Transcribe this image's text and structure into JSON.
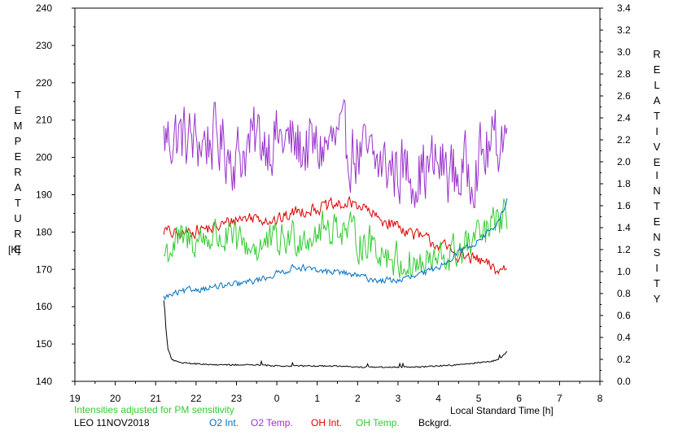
{
  "labels": {
    "left_axis_letters": "TEMPERATURE",
    "left_axis_unit": "[K]",
    "right_axis_letters_1": "RELATIVE",
    "right_axis_letters_2": "INTENSITY",
    "x_axis_title": "Local Standard Time [h]",
    "note": "Intensities adjusted for PM sensitivity",
    "date": "LEO 11NOV2018"
  },
  "legend": [
    {
      "key": "o2_int",
      "label": "O2 Int.",
      "color": "#0070c0"
    },
    {
      "key": "o2_temp",
      "label": "O2 Temp.",
      "color": "#9933cc"
    },
    {
      "key": "oh_int",
      "label": "OH Int.",
      "color": "#dd0000"
    },
    {
      "key": "oh_temp",
      "label": "OH Temp.",
      "color": "#33cc33"
    },
    {
      "key": "bckgrd",
      "label": "Bckgrd.",
      "color": "#000000"
    }
  ],
  "chart_data": {
    "type": "line",
    "x_ticks": [
      "19",
      "20",
      "21",
      "22",
      "23",
      "0",
      "1",
      "2",
      "3",
      "4",
      "5",
      "6",
      "7",
      "8"
    ],
    "xlim": [
      19,
      32
    ],
    "y_left": {
      "label": "TEMPERATURE [K]",
      "lim": [
        140,
        240
      ],
      "ticks": [
        "140",
        "150",
        "160",
        "170",
        "180",
        "190",
        "200",
        "210",
        "220",
        "230",
        "240"
      ]
    },
    "y_right": {
      "label": "RELATIVE INTENSITY",
      "lim": [
        0.0,
        3.4
      ],
      "ticks": [
        "0.0",
        "0.2",
        "0.4",
        "0.6",
        "0.8",
        "1.0",
        "1.2",
        "1.4",
        "1.6",
        "1.8",
        "2.0",
        "2.2",
        "2.4",
        "2.6",
        "2.8",
        "3.0",
        "3.2",
        "3.4"
      ]
    },
    "grid": false,
    "legend_placement": "bottom",
    "series": [
      {
        "name": "O2 Temp.",
        "axis": "left",
        "color": "#9933cc",
        "noise": 9,
        "x": [
          21.2,
          21.5,
          22.0,
          22.5,
          23.0,
          23.5,
          24.0,
          24.5,
          25.0,
          25.5,
          26.0,
          26.5,
          27.0,
          27.5,
          28.0,
          28.5,
          29.0,
          29.5,
          29.7
        ],
        "y": [
          205,
          206,
          204,
          205,
          200,
          205,
          205,
          203,
          202,
          204,
          201,
          198,
          197,
          196,
          198,
          195,
          199,
          205,
          208
        ]
      },
      {
        "name": "OH Int.",
        "axis": "right",
        "color": "#dd0000",
        "noise": 0.06,
        "x": [
          21.2,
          21.5,
          22.0,
          22.5,
          23.0,
          23.5,
          24.0,
          24.5,
          25.0,
          25.5,
          26.0,
          26.5,
          27.0,
          27.5,
          28.0,
          28.5,
          29.0,
          29.5,
          29.7
        ],
        "y": [
          1.38,
          1.33,
          1.38,
          1.4,
          1.48,
          1.5,
          1.46,
          1.55,
          1.58,
          1.6,
          1.62,
          1.48,
          1.42,
          1.32,
          1.25,
          1.15,
          1.1,
          1.0,
          1.05
        ]
      },
      {
        "name": "OH Temp.",
        "axis": "left",
        "color": "#33cc33",
        "noise": 5,
        "x": [
          21.2,
          21.5,
          22.0,
          22.5,
          23.0,
          23.5,
          24.0,
          24.5,
          25.0,
          25.5,
          26.0,
          26.5,
          27.0,
          27.5,
          28.0,
          28.5,
          29.0,
          29.5,
          29.7
        ],
        "y": [
          174,
          177,
          178,
          179,
          177,
          176,
          177,
          179,
          180,
          182,
          178,
          176,
          172,
          171,
          172,
          175,
          178,
          183,
          184
        ]
      },
      {
        "name": "O2 Int.",
        "axis": "right",
        "color": "#0070c0",
        "noise": 0.03,
        "x": [
          21.2,
          21.5,
          22.0,
          22.5,
          23.0,
          23.5,
          24.0,
          24.5,
          25.0,
          25.5,
          26.0,
          26.5,
          27.0,
          27.5,
          28.0,
          28.5,
          29.0,
          29.5,
          29.7
        ],
        "y": [
          0.76,
          0.8,
          0.84,
          0.86,
          0.88,
          0.92,
          0.98,
          1.05,
          1.0,
          1.0,
          0.96,
          0.92,
          0.92,
          0.96,
          1.04,
          1.18,
          1.28,
          1.45,
          1.65
        ]
      },
      {
        "name": "Bckgrd.",
        "axis": "right",
        "color": "#000000",
        "noise": 0.02,
        "x": [
          21.2,
          21.25,
          21.3,
          21.4,
          21.6,
          22.0,
          22.5,
          23.0,
          23.5,
          24.0,
          24.5,
          25.0,
          25.5,
          26.0,
          26.5,
          27.0,
          27.5,
          28.0,
          28.5,
          29.0,
          29.3,
          29.5,
          29.7
        ],
        "y": [
          0.74,
          0.5,
          0.3,
          0.2,
          0.17,
          0.16,
          0.15,
          0.15,
          0.15,
          0.14,
          0.14,
          0.14,
          0.14,
          0.13,
          0.13,
          0.13,
          0.13,
          0.14,
          0.15,
          0.17,
          0.18,
          0.2,
          0.27
        ]
      }
    ]
  }
}
